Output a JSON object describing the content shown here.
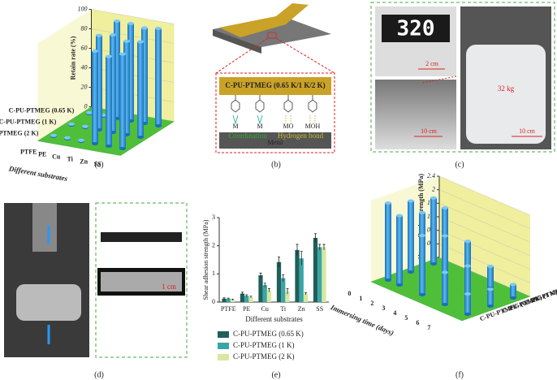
{
  "panel_labels": [
    "(a)",
    "(b)",
    "(c)",
    "(d)",
    "(e)",
    "(f)"
  ],
  "panel_b": {
    "polymer": "C-PU-PTMEG (0.65 K/1 K/2 K)",
    "atoms": [
      "M",
      "M",
      "MO",
      "MOH"
    ],
    "bond_left": "Coordination",
    "bond_right": "Hydrogen bond",
    "substrate": "Metal"
  },
  "panel_c": {
    "display": "320",
    "scale_inset": "2 cm",
    "scale_left": "10 cm",
    "scale_right": "10 cm",
    "weight": "32 kg"
  },
  "panel_d": {
    "scale": "1 cm"
  },
  "chart_data": [
    {
      "type": "bar3d",
      "ylabel": "Retain rate (%)",
      "xlabel": "Different substrates",
      "categories": [
        "PTFE",
        "PE",
        "Cu",
        "Ti",
        "Zn",
        "SS"
      ],
      "ylim": [
        0,
        100
      ],
      "yticks": [
        0,
        20,
        40,
        60,
        80,
        100
      ],
      "series": [
        {
          "name": "C-PU-PTMEG (0.65 K)",
          "color": "#2f8fd8",
          "values": [
            1,
            1,
            100,
            100,
            98,
            100
          ]
        },
        {
          "name": "C-PU-PTMEG (1 K)",
          "color": "#2f8fd8",
          "values": [
            1,
            1,
            97,
            100,
            96,
            98
          ]
        },
        {
          "name": "C-PU-PTMEG (2 K)",
          "color": "#2f8fd8",
          "values": [
            1,
            1,
            1,
            95,
            92,
            97
          ]
        }
      ]
    },
    {
      "type": "bar",
      "ylabel": "Shear adhesion strength (MPa)",
      "xlabel": "Different substrates",
      "categories": [
        "PTFE",
        "PE",
        "Cu",
        "Ti",
        "Zn",
        "SS"
      ],
      "ylim": [
        0,
        3
      ],
      "yticks": [
        0,
        1,
        2,
        3
      ],
      "series": [
        {
          "name": "C-PU-PTMEG (0.65 K)",
          "color": "#1f5f5a",
          "values": [
            0.12,
            0.3,
            0.95,
            1.42,
            1.85,
            2.28
          ],
          "errors": [
            0.03,
            0.05,
            0.08,
            0.18,
            0.2,
            0.15
          ]
        },
        {
          "name": "C-PU-PTMEG (1 K)",
          "color": "#3aa5a5",
          "values": [
            0.12,
            0.22,
            0.6,
            0.85,
            1.55,
            1.95
          ],
          "errors": [
            0.02,
            0.04,
            0.07,
            0.12,
            0.25,
            0.1
          ]
        },
        {
          "name": "C-PU-PTMEG (2 K)",
          "color": "#d7e8a0",
          "values": [
            0.08,
            0.18,
            0.42,
            0.38,
            0.3,
            1.95
          ],
          "errors": [
            0.02,
            0.03,
            0.06,
            0.1,
            0.04,
            0.1
          ]
        }
      ]
    },
    {
      "type": "bar3d",
      "ylabel": "Shear adhesion strength (MPa)",
      "xlabel": "Immersing time (days)",
      "categories": [
        "0",
        "1",
        "2",
        "3",
        "4",
        "5",
        "6",
        "7"
      ],
      "ylim": [
        0,
        2.4
      ],
      "yticks": [
        0,
        0.4,
        0.8,
        1.2,
        1.6,
        2,
        2.4
      ],
      "series": [
        {
          "name": "C-PU-PTMEG (0.65 K)",
          "color": "#2f8fd8",
          "values": [
            2.28,
            2.05,
            null,
            1.75,
            null,
            0.95,
            null,
            0.6
          ]
        },
        {
          "name": "C-PU-PTMEG (1 K)",
          "color": "#2f8fd8",
          "values": [
            2.1,
            1.9,
            null,
            1.5,
            null,
            0.9,
            null,
            0.5
          ]
        },
        {
          "name": "C-PU-PTMEG (2 K)",
          "color": "#2f8fd8",
          "values": [
            1.95,
            1.8,
            null,
            1.1,
            null,
            0.65,
            null,
            0.4
          ]
        }
      ]
    }
  ]
}
